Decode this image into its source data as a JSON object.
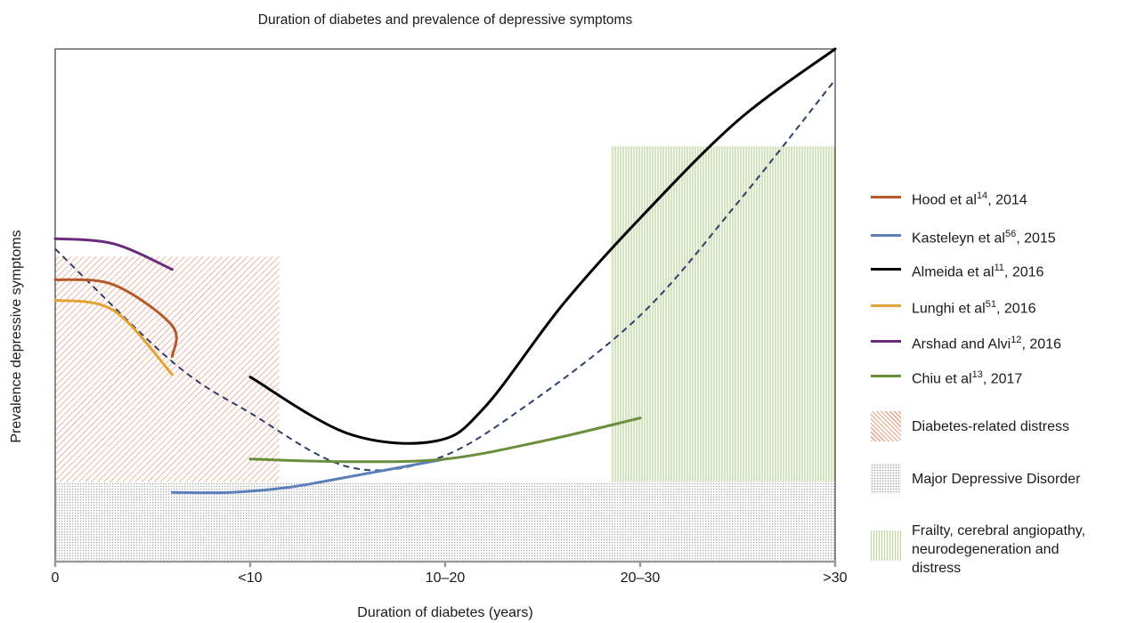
{
  "chart_data": {
    "type": "line",
    "title": "Duration of diabetes and prevalence of depressive symptoms",
    "xlabel": "Duration of diabetes (years)",
    "ylabel": "Prevalence depressive symptoms",
    "x_categories": [
      "0",
      "<10",
      "10–20",
      "20–30",
      ">30"
    ],
    "xlim": [
      0,
      4
    ],
    "ylim": [
      0,
      100
    ],
    "series": [
      {
        "name": "Hood et al",
        "sup": "14",
        "year": ", 2014",
        "color": "#b5582a",
        "points": [
          [
            0,
            55
          ],
          [
            0.3,
            54
          ],
          [
            0.6,
            46
          ],
          [
            0.6,
            40
          ]
        ]
      },
      {
        "name": "Kasteleyn et al",
        "sup": "56",
        "year": ", 2015",
        "color": "#5a7fba",
        "points": [
          [
            0.6,
            13.5
          ],
          [
            0.9,
            13.5
          ],
          [
            1.2,
            14.5
          ],
          [
            1.5,
            16.5
          ],
          [
            2,
            20
          ]
        ]
      },
      {
        "name": "Almeida et al",
        "sup": "11",
        "year": ", 2016",
        "color": "#000000",
        "points": [
          [
            1,
            36
          ],
          [
            1.5,
            25
          ],
          [
            1.95,
            23.5
          ],
          [
            2.2,
            30
          ],
          [
            2.6,
            50
          ],
          [
            3.0,
            67
          ],
          [
            3.5,
            86
          ],
          [
            4,
            100
          ]
        ]
      },
      {
        "name": "Lunghi et al",
        "sup": "51",
        "year": ", 2016",
        "color": "#e3a234",
        "points": [
          [
            0,
            51
          ],
          [
            0.3,
            49
          ],
          [
            0.6,
            36.5
          ]
        ]
      },
      {
        "name": "Arshad and Alvi",
        "sup": "12",
        "year": ", 2016",
        "color": "#6b2a7c",
        "points": [
          [
            0,
            63
          ],
          [
            0.3,
            62
          ],
          [
            0.6,
            57
          ]
        ]
      },
      {
        "name": "Chiu et al",
        "sup": "13",
        "year": ", 2017",
        "color": "#6a8f3c",
        "points": [
          [
            1,
            20
          ],
          [
            1.5,
            19.5
          ],
          [
            2.0,
            20
          ],
          [
            2.5,
            23.5
          ],
          [
            3.0,
            28
          ]
        ]
      }
    ],
    "trend": {
      "style": "dashed",
      "color": "#2f3f6b",
      "points": [
        [
          0,
          61
        ],
        [
          0.6,
          39
        ],
        [
          1,
          29
        ],
        [
          1.5,
          18.5
        ],
        [
          1.95,
          20
        ],
        [
          2.4,
          30
        ],
        [
          3.0,
          48
        ],
        [
          3.5,
          70
        ],
        [
          4,
          94
        ]
      ]
    },
    "regions": [
      {
        "name": "Diabetes-related distress",
        "x": [
          0,
          1.15
        ],
        "y": [
          0,
          59.5
        ],
        "color": "#e5a489",
        "pattern": "diagonal"
      },
      {
        "name": "Major Depressive Disorder",
        "x": [
          0,
          4
        ],
        "y": [
          0,
          15.5
        ],
        "color": "#a6a6a6",
        "pattern": "dots"
      },
      {
        "name": "Frailty, cerebral angiopathy,\nneurodegeneration and\ndistress",
        "x": [
          2.85,
          4
        ],
        "y": [
          15.5,
          81
        ],
        "color": "#c4d6a8",
        "pattern": "vertical"
      }
    ],
    "grid": false,
    "legend_position": "right"
  }
}
